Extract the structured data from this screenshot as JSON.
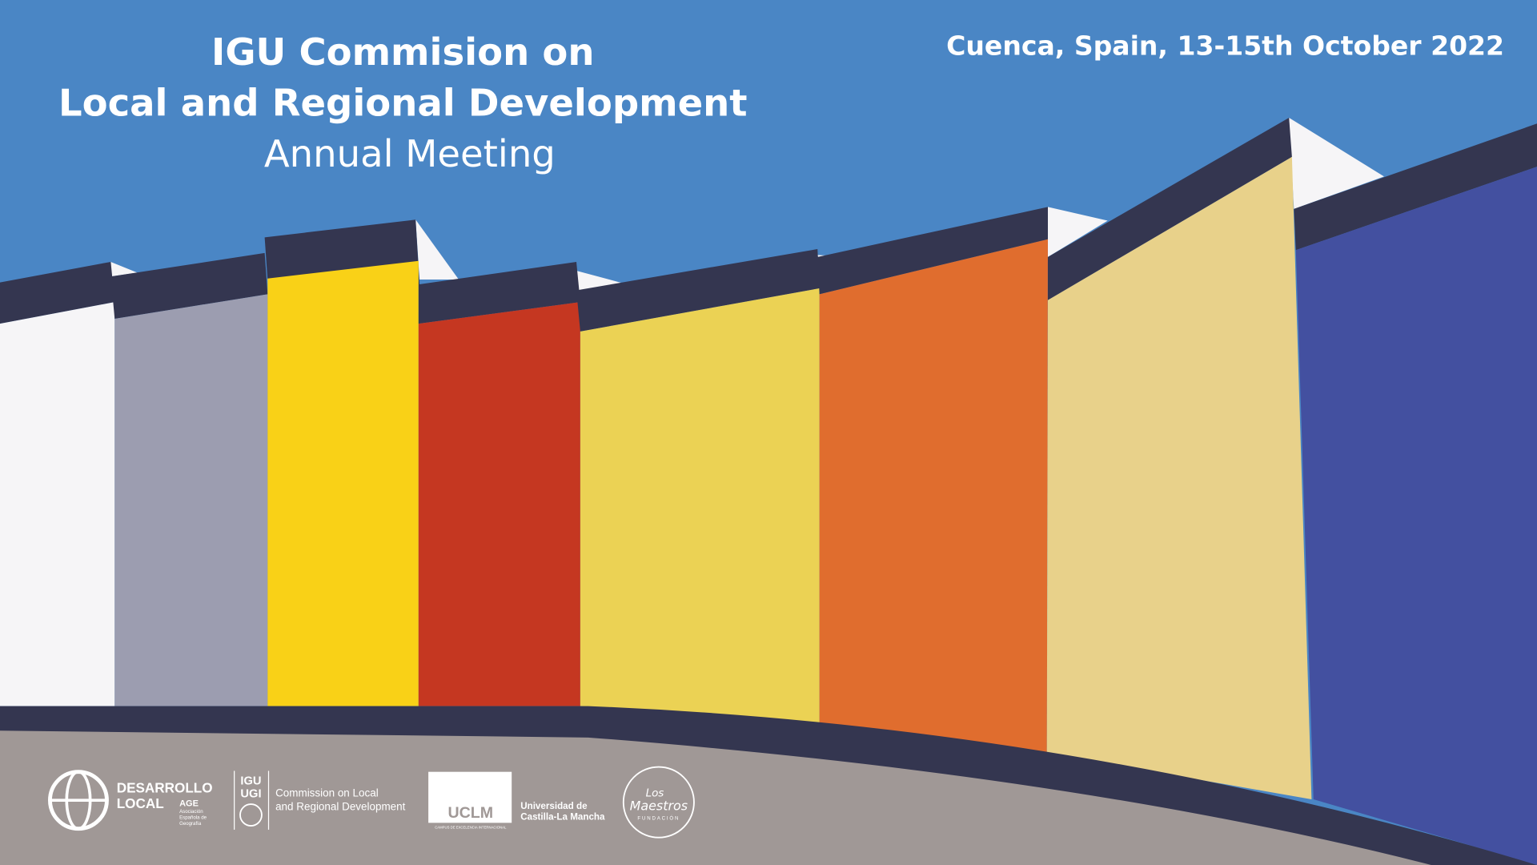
{
  "header": {
    "title_lines": [
      "IGU Commision on",
      "Local and Regional Development"
    ],
    "subtitle": "Annual Meeting",
    "location_date": "Cuenca, Spain, 13-15th October 2022"
  },
  "logos": [
    {
      "name_lines": [
        "DESARROLLO",
        "LOCAL"
      ],
      "org": "AGE",
      "org_lines": [
        "Asociación",
        "Española de",
        "Geografía"
      ]
    },
    {
      "badge_lines": [
        "IGU",
        "UGI"
      ],
      "text_lines": [
        "Commission on Local",
        "and Regional Development"
      ]
    },
    {
      "badge": "UCLM",
      "tagline": "CAMPUS DE EXCELENCIA INTERNACIONAL",
      "text_lines": [
        "Universidad de",
        "Castilla-La Mancha"
      ]
    },
    {
      "name_lines": [
        "Los",
        "Maestros"
      ],
      "tagline": "FUNDACIÓN"
    }
  ]
}
